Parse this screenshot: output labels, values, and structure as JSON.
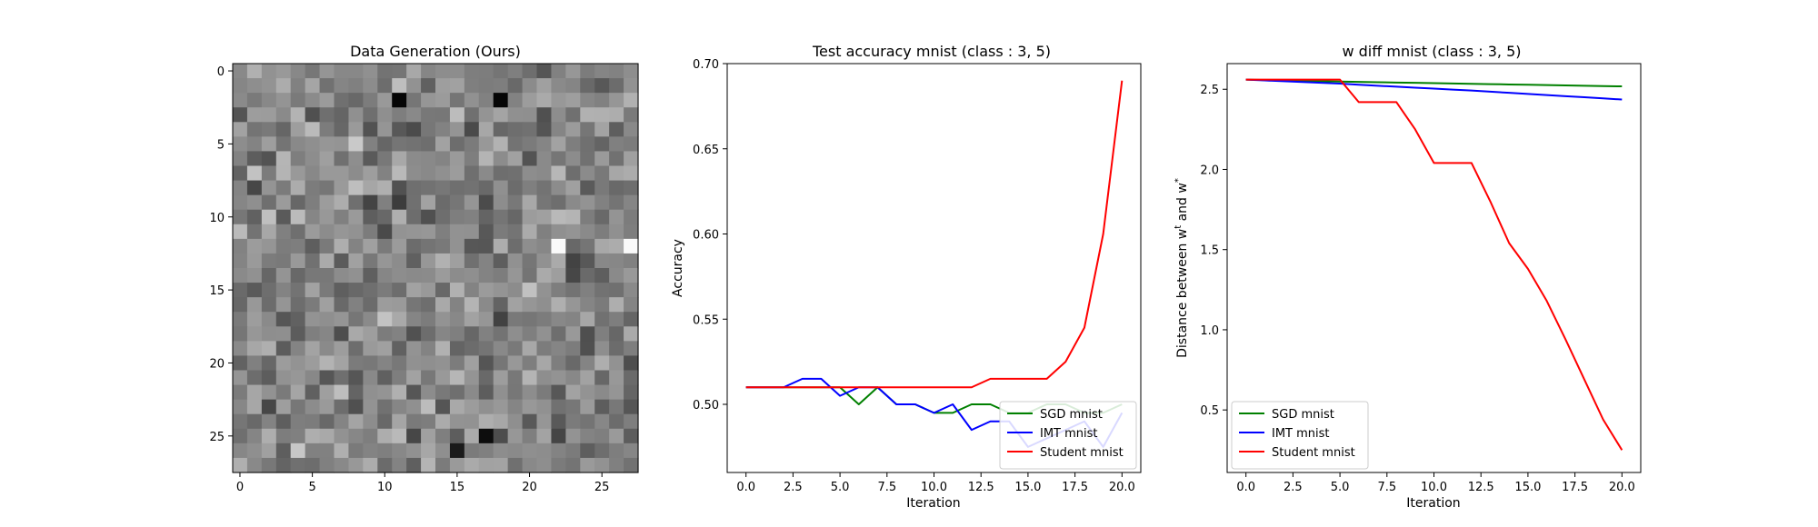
{
  "chart_data": [
    {
      "type": "heatmap",
      "title": "Data Generation (Ours)",
      "xlabel": "",
      "ylabel": "",
      "xlim": [
        -0.5,
        27.5
      ],
      "ylim": [
        27.5,
        -0.5
      ],
      "xticks": [
        "0",
        "5",
        "10",
        "15",
        "20",
        "25"
      ],
      "yticks": [
        "0",
        "5",
        "10",
        "15",
        "20",
        "25"
      ],
      "colormap": "gray",
      "grid_size": [
        28,
        28
      ],
      "notable_pixels": [
        {
          "row": 2,
          "col": 11,
          "value": 0.02
        },
        {
          "row": 2,
          "col": 18,
          "value": 0.02
        },
        {
          "row": 12,
          "col": 22,
          "value": 0.98
        },
        {
          "row": 12,
          "col": 27,
          "value": 0.98
        },
        {
          "row": 25,
          "col": 17,
          "value": 0.05
        },
        {
          "row": 26,
          "col": 15,
          "value": 0.1
        }
      ]
    },
    {
      "type": "line",
      "title": "Test accuracy mnist (class : 3, 5)",
      "xlabel": "Iteration",
      "ylabel": "Accuracy",
      "xlim": [
        -1,
        21
      ],
      "ylim": [
        0.46,
        0.7
      ],
      "xticks": [
        "0.0",
        "2.5",
        "5.0",
        "7.5",
        "10.0",
        "12.5",
        "15.0",
        "17.5",
        "20.0"
      ],
      "yticks": [
        "0.50",
        "0.55",
        "0.60",
        "0.65",
        "0.70"
      ],
      "legend_position": "lower right",
      "grid": false,
      "x": [
        0,
        1,
        2,
        3,
        4,
        5,
        6,
        7,
        8,
        9,
        10,
        11,
        12,
        13,
        14,
        15,
        16,
        17,
        18,
        19,
        20
      ],
      "series": [
        {
          "name": "SGD mnist",
          "color": "#008000",
          "values": [
            0.51,
            0.51,
            0.51,
            0.51,
            0.51,
            0.51,
            0.5,
            0.51,
            0.5,
            0.5,
            0.495,
            0.495,
            0.5,
            0.5,
            0.495,
            0.495,
            0.5,
            0.5,
            0.495,
            0.495,
            0.5
          ]
        },
        {
          "name": "IMT mnist",
          "color": "#0000ff",
          "values": [
            0.51,
            0.51,
            0.51,
            0.515,
            0.515,
            0.505,
            0.51,
            0.51,
            0.5,
            0.5,
            0.495,
            0.5,
            0.485,
            0.49,
            0.49,
            0.475,
            0.48,
            0.485,
            0.49,
            0.475,
            0.495
          ]
        },
        {
          "name": "Student mnist",
          "color": "#ff0000",
          "values": [
            0.51,
            0.51,
            0.51,
            0.51,
            0.51,
            0.51,
            0.51,
            0.51,
            0.51,
            0.51,
            0.51,
            0.51,
            0.51,
            0.515,
            0.515,
            0.515,
            0.515,
            0.525,
            0.545,
            0.6,
            0.69
          ]
        }
      ]
    },
    {
      "type": "line",
      "title": "w diff mnist (class : 3, 5)",
      "xlabel": "Iteration",
      "ylabel": "Distance between w",
      "ylabel_sup_1": "t",
      "ylabel_mid": " and w",
      "ylabel_sup_2": "*",
      "xlim": [
        -1,
        21
      ],
      "ylim": [
        0.11,
        2.66
      ],
      "xticks": [
        "0.0",
        "2.5",
        "5.0",
        "7.5",
        "10.0",
        "12.5",
        "15.0",
        "17.5",
        "20.0"
      ],
      "yticks": [
        "0.5",
        "1.0",
        "1.5",
        "2.0",
        "2.5"
      ],
      "legend_position": "lower left",
      "grid": false,
      "x": [
        0,
        1,
        2,
        3,
        4,
        5,
        6,
        7,
        8,
        9,
        10,
        11,
        12,
        13,
        14,
        15,
        16,
        17,
        18,
        19,
        20
      ],
      "series": [
        {
          "name": "SGD mnist",
          "color": "#008000",
          "values": [
            2.56,
            2.557,
            2.555,
            2.552,
            2.55,
            2.548,
            2.546,
            2.544,
            2.542,
            2.54,
            2.538,
            2.536,
            2.534,
            2.532,
            2.53,
            2.528,
            2.526,
            2.524,
            2.522,
            2.52,
            2.518
          ]
        },
        {
          "name": "IMT mnist",
          "color": "#0000ff",
          "values": [
            2.56,
            2.555,
            2.55,
            2.545,
            2.54,
            2.535,
            2.528,
            2.522,
            2.516,
            2.51,
            2.504,
            2.498,
            2.492,
            2.485,
            2.478,
            2.471,
            2.464,
            2.457,
            2.45,
            2.443,
            2.436
          ]
        },
        {
          "name": "Student mnist",
          "color": "#ff0000",
          "values": [
            2.56,
            2.56,
            2.56,
            2.56,
            2.56,
            2.56,
            2.42,
            2.42,
            2.42,
            2.25,
            2.04,
            2.04,
            2.04,
            1.8,
            1.54,
            1.38,
            1.18,
            0.94,
            0.69,
            0.44,
            0.25
          ]
        }
      ]
    }
  ]
}
